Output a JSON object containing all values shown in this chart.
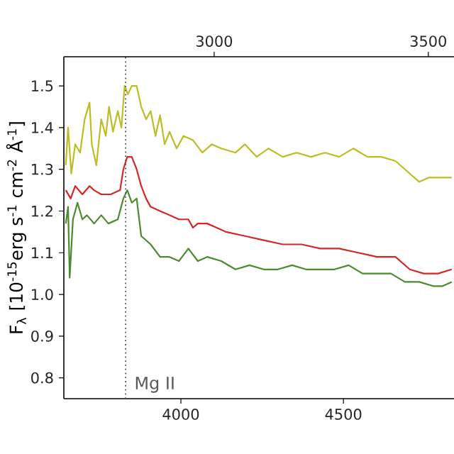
{
  "chart_data": {
    "type": "line",
    "ylabel": "F$_{λ}$ [10$^{-15}$erg s$^{-1}$ cm$^{-2}$ Å$^{-1}$]",
    "xlim": [
      3640,
      4840
    ],
    "xticks": [
      4000,
      4500
    ],
    "x2lim": [
      2649,
      3560
    ],
    "x2ticks": [
      3000,
      3500
    ],
    "ylim": [
      0.75,
      1.57
    ],
    "yticks": [
      0.8,
      0.9,
      {
        "value": 1.0,
        "label": "1.0"
      },
      1.1,
      1.2,
      1.3,
      1.4,
      1.5
    ],
    "grid": false,
    "marker": "none",
    "line_style": "solid",
    "ref_lines": [
      {
        "axis": "x",
        "value": 3830,
        "label": "Mg II",
        "color": "#555555",
        "line_style": "dotted"
      }
    ],
    "series": [
      {
        "color": "#bcbd22",
        "x": [
          3646,
          3653,
          3663,
          3675,
          3690,
          3704,
          3719,
          3726,
          3740,
          3755,
          3769,
          3779,
          3791,
          3806,
          3817,
          3827,
          3837,
          3849,
          3864,
          3878,
          3893,
          3907,
          3922,
          3936,
          3950,
          3965,
          3987,
          4008,
          4037,
          4066,
          4095,
          4124,
          4168,
          4197,
          4233,
          4269,
          4313,
          4356,
          4400,
          4443,
          4487,
          4530,
          4574,
          4617,
          4660,
          4689,
          4733,
          4762,
          4791,
          4833
        ],
        "values": [
          1.31,
          1.4,
          1.29,
          1.36,
          1.34,
          1.42,
          1.46,
          1.36,
          1.31,
          1.42,
          1.38,
          1.45,
          1.39,
          1.44,
          1.4,
          1.5,
          1.48,
          1.5,
          1.5,
          1.45,
          1.42,
          1.44,
          1.38,
          1.43,
          1.36,
          1.39,
          1.35,
          1.38,
          1.37,
          1.34,
          1.36,
          1.35,
          1.34,
          1.36,
          1.33,
          1.35,
          1.33,
          1.34,
          1.33,
          1.34,
          1.33,
          1.35,
          1.33,
          1.33,
          1.32,
          1.3,
          1.27,
          1.28,
          1.28,
          1.28
        ]
      },
      {
        "color": "#d62728",
        "x": [
          3646,
          3661,
          3675,
          3697,
          3719,
          3733,
          3755,
          3784,
          3813,
          3823,
          3835,
          3849,
          3864,
          3878,
          3893,
          3907,
          3936,
          3965,
          3994,
          4023,
          4037,
          4052,
          4081,
          4110,
          4139,
          4197,
          4255,
          4313,
          4371,
          4429,
          4487,
          4545,
          4603,
          4660,
          4704,
          4747,
          4791,
          4833
        ],
        "values": [
          1.25,
          1.23,
          1.26,
          1.24,
          1.26,
          1.25,
          1.24,
          1.24,
          1.25,
          1.3,
          1.33,
          1.33,
          1.3,
          1.26,
          1.23,
          1.21,
          1.2,
          1.19,
          1.18,
          1.18,
          1.16,
          1.17,
          1.17,
          1.16,
          1.15,
          1.14,
          1.13,
          1.12,
          1.12,
          1.11,
          1.11,
          1.1,
          1.09,
          1.09,
          1.06,
          1.05,
          1.05,
          1.06
        ]
      },
      {
        "color": "#4c8a2e",
        "x": [
          3646,
          3653,
          3658,
          3668,
          3682,
          3697,
          3711,
          3733,
          3755,
          3777,
          3806,
          3823,
          3835,
          3849,
          3864,
          3878,
          3907,
          3936,
          3965,
          3994,
          4023,
          4052,
          4081,
          4124,
          4168,
          4211,
          4255,
          4298,
          4342,
          4385,
          4429,
          4472,
          4516,
          4559,
          4603,
          4646,
          4689,
          4733,
          4776,
          4805,
          4833
        ],
        "values": [
          1.17,
          1.21,
          1.04,
          1.18,
          1.22,
          1.18,
          1.19,
          1.17,
          1.19,
          1.17,
          1.18,
          1.23,
          1.25,
          1.22,
          1.23,
          1.14,
          1.12,
          1.09,
          1.09,
          1.08,
          1.11,
          1.08,
          1.09,
          1.08,
          1.06,
          1.07,
          1.06,
          1.06,
          1.07,
          1.06,
          1.06,
          1.06,
          1.07,
          1.05,
          1.05,
          1.05,
          1.03,
          1.03,
          1.02,
          1.02,
          1.03
        ]
      }
    ]
  }
}
